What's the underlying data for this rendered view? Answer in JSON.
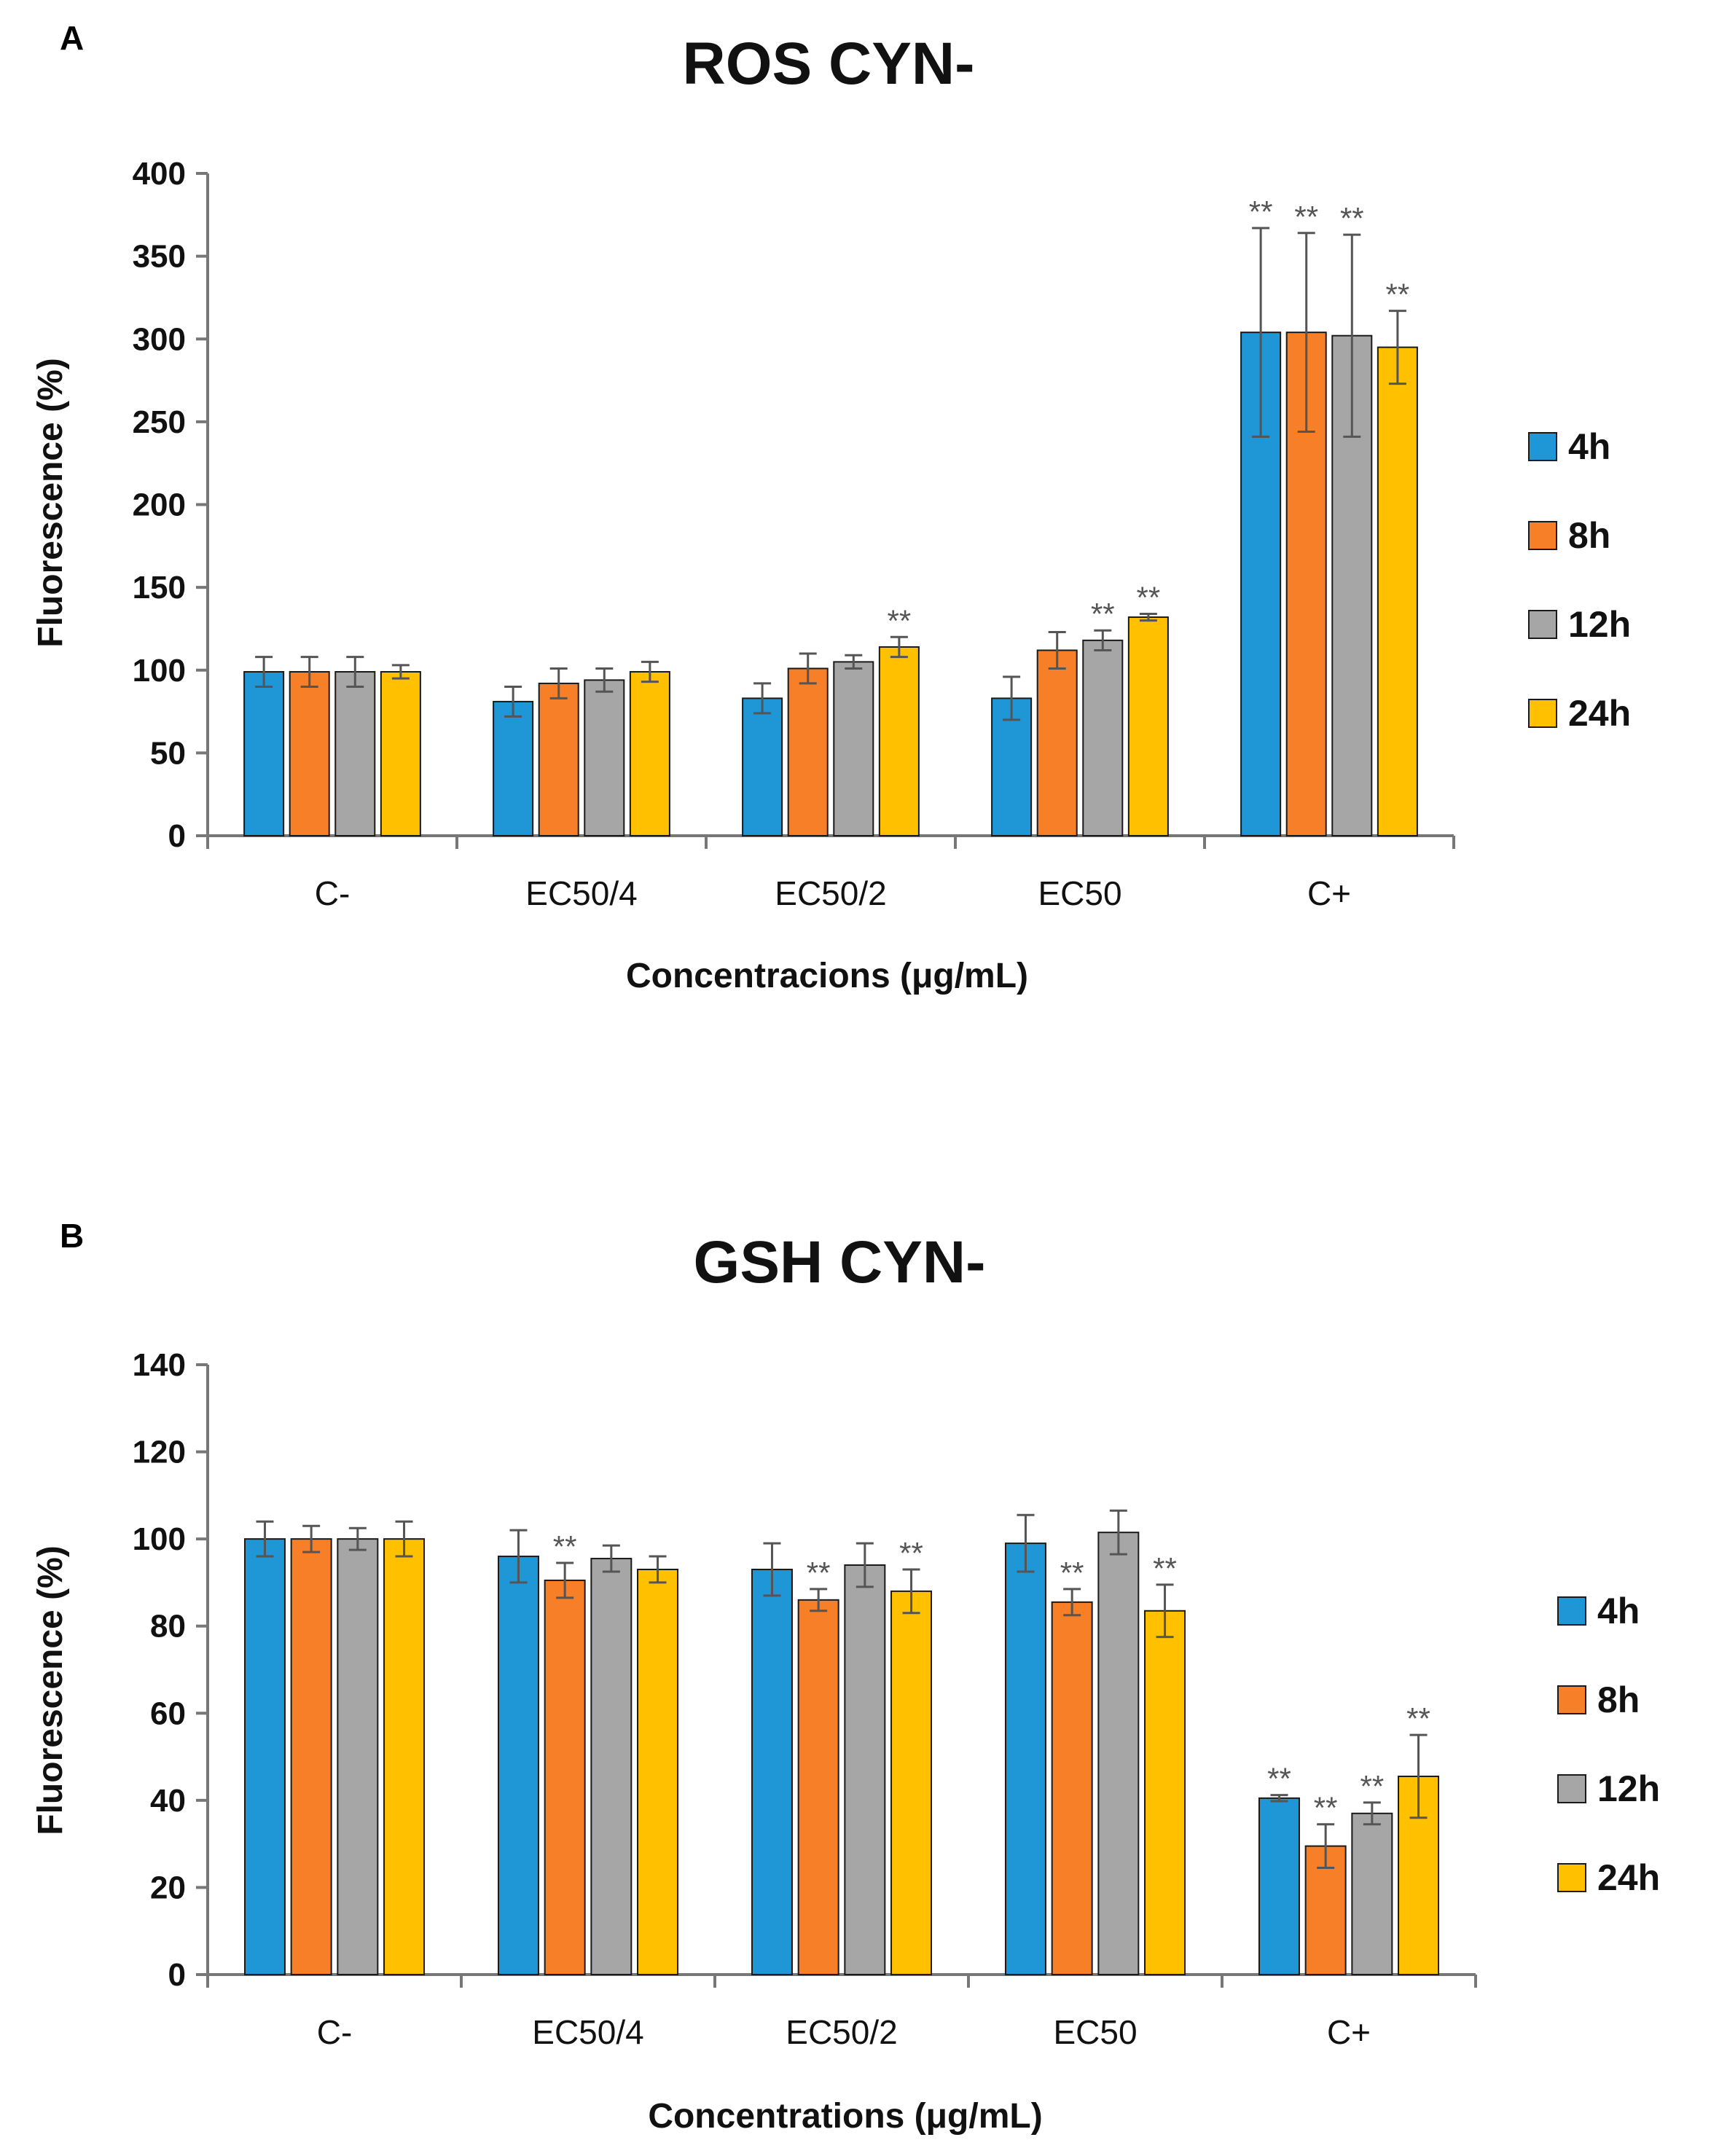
{
  "series_colors": {
    "4h": "#1f96d6",
    "8h": "#f77f27",
    "12h": "#a6a6a6",
    "24h": "#ffc000"
  },
  "chart_data": [
    {
      "panel": "A",
      "type": "bar",
      "title": "ROS CYN-",
      "xlabel": "Concentracions (μg/mL)",
      "ylabel": "Fluorescence (%)",
      "ylim": [
        0,
        400
      ],
      "yticks": [
        0,
        50,
        100,
        150,
        200,
        250,
        300,
        350,
        400
      ],
      "categories": [
        "C-",
        "EC50/4",
        "EC50/2",
        "EC50",
        "C+"
      ],
      "legend_position": "right",
      "series": [
        {
          "name": "4h",
          "values": [
            99,
            81,
            83,
            83,
            304
          ],
          "errors": [
            9,
            9,
            9,
            13,
            63
          ],
          "significance": [
            "",
            "",
            "",
            "",
            "**"
          ]
        },
        {
          "name": "8h",
          "values": [
            99,
            92,
            101,
            112,
            304
          ],
          "errors": [
            9,
            9,
            9,
            11,
            60
          ],
          "significance": [
            "",
            "",
            "",
            "",
            "**"
          ]
        },
        {
          "name": "12h",
          "values": [
            99,
            94,
            105,
            118,
            302
          ],
          "errors": [
            9,
            7,
            4,
            6,
            61
          ],
          "significance": [
            "",
            "",
            "",
            "**",
            "**"
          ]
        },
        {
          "name": "24h",
          "values": [
            99,
            99,
            114,
            132,
            295
          ],
          "errors": [
            4,
            6,
            6,
            2,
            22
          ],
          "significance": [
            "",
            "",
            "**",
            "**",
            "**"
          ]
        }
      ]
    },
    {
      "panel": "B",
      "type": "bar",
      "title": "GSH CYN-",
      "xlabel": "Concentrations (μg/mL)",
      "ylabel": "Fluorescence (%)",
      "ylim": [
        0,
        140
      ],
      "yticks": [
        0,
        20,
        40,
        60,
        80,
        100,
        120,
        140
      ],
      "categories": [
        "C-",
        "EC50/4",
        "EC50/2",
        "EC50",
        "C+"
      ],
      "legend_position": "right",
      "series": [
        {
          "name": "4h",
          "values": [
            100,
            96,
            93,
            99,
            40.5
          ],
          "errors": [
            4,
            6,
            6,
            6.5,
            0.7
          ],
          "significance": [
            "",
            "",
            "",
            "",
            "**"
          ]
        },
        {
          "name": "8h",
          "values": [
            100,
            90.5,
            86,
            85.5,
            29.5
          ],
          "errors": [
            3,
            4,
            2.5,
            3,
            5
          ],
          "significance": [
            "",
            "**",
            "**",
            "**",
            "**"
          ]
        },
        {
          "name": "12h",
          "values": [
            100,
            95.5,
            94,
            101.5,
            37
          ],
          "errors": [
            2.5,
            3,
            5,
            5,
            2.5
          ],
          "significance": [
            "",
            "",
            "",
            "",
            "**"
          ]
        },
        {
          "name": "24h",
          "values": [
            100,
            93,
            88,
            83.5,
            45.5
          ],
          "errors": [
            4,
            3,
            5,
            6,
            9.5
          ],
          "significance": [
            "",
            "",
            "**",
            "**",
            "**"
          ]
        }
      ]
    }
  ]
}
